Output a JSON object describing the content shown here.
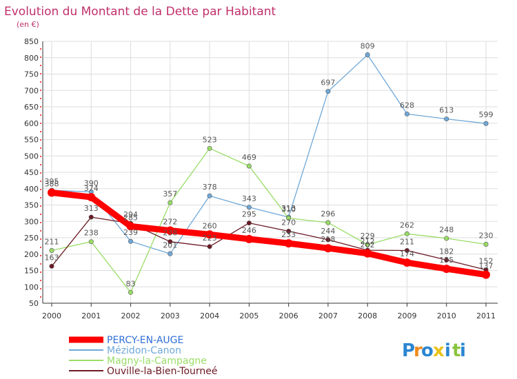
{
  "chart_data": {
    "type": "line",
    "title": "Evolution du Montant de la Dette par Habitant",
    "unit": "(en €)",
    "x": [
      "2000",
      "2001",
      "2002",
      "2003",
      "2004",
      "2005",
      "2006",
      "2007",
      "2008",
      "2009",
      "2010",
      "2011"
    ],
    "ylim": [
      50,
      850
    ],
    "yticks": [
      50,
      100,
      150,
      200,
      250,
      300,
      350,
      400,
      450,
      500,
      550,
      600,
      650,
      700,
      750,
      800,
      850
    ],
    "grid": true,
    "legend_position": "bottom-left",
    "series": [
      {
        "name": "PERCY-EN-AUGE",
        "color": "#ff0000",
        "width": 9,
        "values": [
          388,
          374,
          285,
          272,
          260,
          246,
          233,
          218,
          202,
          174,
          155,
          137
        ]
      },
      {
        "name": "Mézidon-Canon",
        "color": "#6fa8d8",
        "width": 1.3,
        "values": [
          395,
          390,
          239,
          201,
          378,
          343,
          313,
          697,
          809,
          628,
          613,
          599
        ]
      },
      {
        "name": "Magny-la-Campagne",
        "color": "#99dd66",
        "width": 1.3,
        "values": [
          211,
          238,
          83,
          357,
          523,
          469,
          310,
          296,
          229,
          262,
          248,
          230
        ]
      },
      {
        "name": "Ouville-la-Bien-Tourneé",
        "color": "#6b1a24",
        "width": 1.3,
        "values": [
          163,
          313,
          294,
          238,
          223,
          295,
          270,
          244,
          212,
          211,
          182,
          152
        ]
      }
    ]
  },
  "brand": {
    "letters": [
      "P",
      "r",
      "o",
      "x",
      "i",
      "t",
      "i"
    ],
    "colors": [
      "#2a86d1",
      "#f08a1c",
      "#2a86d1",
      "#e8c21a",
      "#2a86d1",
      "#8ac43f",
      "#2a86d1"
    ]
  }
}
